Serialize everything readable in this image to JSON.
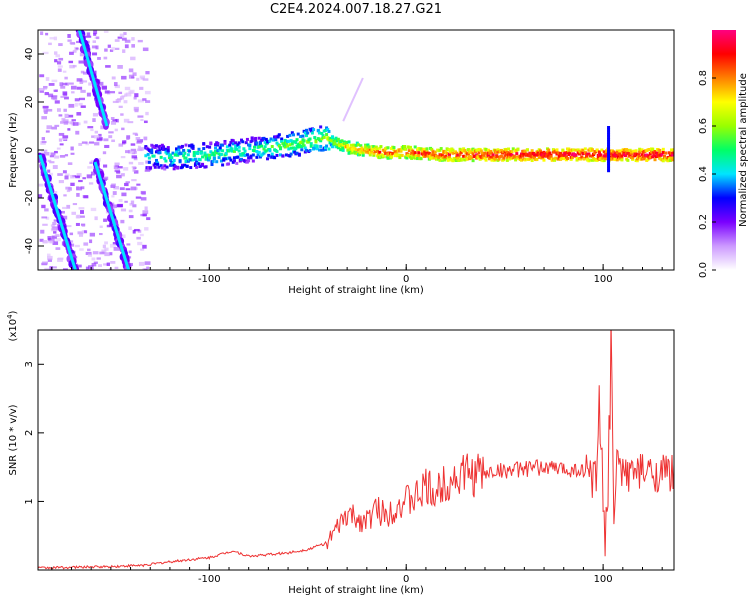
{
  "title": "C2E4.2024.007.18.27.G21",
  "chart_data": [
    {
      "type": "heatmap",
      "xlabel": "Height of straight line (km)",
      "ylabel": "Frequency (Hz)",
      "xlim": [
        -187,
        136
      ],
      "ylim": [
        -50,
        50
      ],
      "xticks": [
        -100,
        0,
        100
      ],
      "yticks": [
        -40,
        -20,
        0,
        20,
        40
      ],
      "colorbar": {
        "label": "Normalized spectral amplitude",
        "range": [
          0,
          1
        ],
        "ticks": [
          "0.0",
          "0.2",
          "0.4",
          "0.6",
          "0.8"
        ],
        "colors": [
          "#ffffff",
          "#cc99ff",
          "#7a00ff",
          "#0000ff",
          "#00e5ff",
          "#00ff66",
          "#99ff00",
          "#ffff00",
          "#ff8000",
          "#ff0000",
          "#ff0080"
        ]
      },
      "ridge": [
        {
          "x": -133,
          "y": -3,
          "amp": 0.45
        },
        {
          "x": -120,
          "y": -3,
          "amp": 0.5
        },
        {
          "x": -100,
          "y": -2,
          "amp": 0.5
        },
        {
          "x": -80,
          "y": 0,
          "amp": 0.5
        },
        {
          "x": -60,
          "y": 2,
          "amp": 0.55
        },
        {
          "x": -42,
          "y": 5,
          "amp": 0.6
        },
        {
          "x": -30,
          "y": 1,
          "amp": 0.75
        },
        {
          "x": -15,
          "y": -1,
          "amp": 0.85
        },
        {
          "x": 0,
          "y": -1,
          "amp": 0.85
        },
        {
          "x": 20,
          "y": -2,
          "amp": 0.9
        },
        {
          "x": 60,
          "y": -2,
          "amp": 0.95
        },
        {
          "x": 100,
          "y": -2,
          "amp": 0.95
        },
        {
          "x": 136,
          "y": -2,
          "amp": 0.95
        }
      ],
      "diagonal_tracks": [
        {
          "x0": -166,
          "y0": 50,
          "x1": -152,
          "y1": 10
        },
        {
          "x0": -186,
          "y0": -2,
          "x1": -168,
          "y1": -50
        },
        {
          "x0": -158,
          "y0": -5,
          "x1": -141,
          "y1": -50
        }
      ]
    },
    {
      "type": "line",
      "xlabel": "Height of straight line (km)",
      "ylabel": "SNR (10 * v/v)",
      "yscale_label": "(x10",
      "yscale_exp": "4",
      "yscale_close": ")",
      "xlim": [
        -187,
        136
      ],
      "ylim": [
        0,
        3.5
      ],
      "xticks": [
        -100,
        0,
        100
      ],
      "yticks": [
        1,
        2,
        3
      ],
      "color": "#ee3333",
      "series": [
        {
          "name": "SNR",
          "x": [
            -187,
            -150,
            -133,
            -120,
            -100,
            -88,
            -80,
            -60,
            -50,
            -40,
            -35,
            -30,
            -25,
            -20,
            -15,
            -10,
            -5,
            0,
            5,
            10,
            15,
            20,
            30,
            40,
            45,
            50,
            60,
            70,
            80,
            90,
            95,
            98,
            100,
            102,
            104,
            106,
            108,
            110,
            120,
            136
          ],
          "y": [
            0.03,
            0.05,
            0.07,
            0.12,
            0.18,
            0.28,
            0.2,
            0.25,
            0.3,
            0.4,
            0.6,
            0.8,
            0.75,
            0.7,
            0.9,
            0.8,
            0.95,
            1.0,
            1.05,
            1.2,
            1.1,
            1.3,
            1.4,
            1.4,
            1.45,
            1.45,
            1.47,
            1.5,
            1.47,
            1.46,
            1.45,
            1.7,
            0.9,
            0.3,
            3.2,
            0.5,
            1.6,
            1.43,
            1.42,
            1.41
          ]
        }
      ]
    }
  ]
}
